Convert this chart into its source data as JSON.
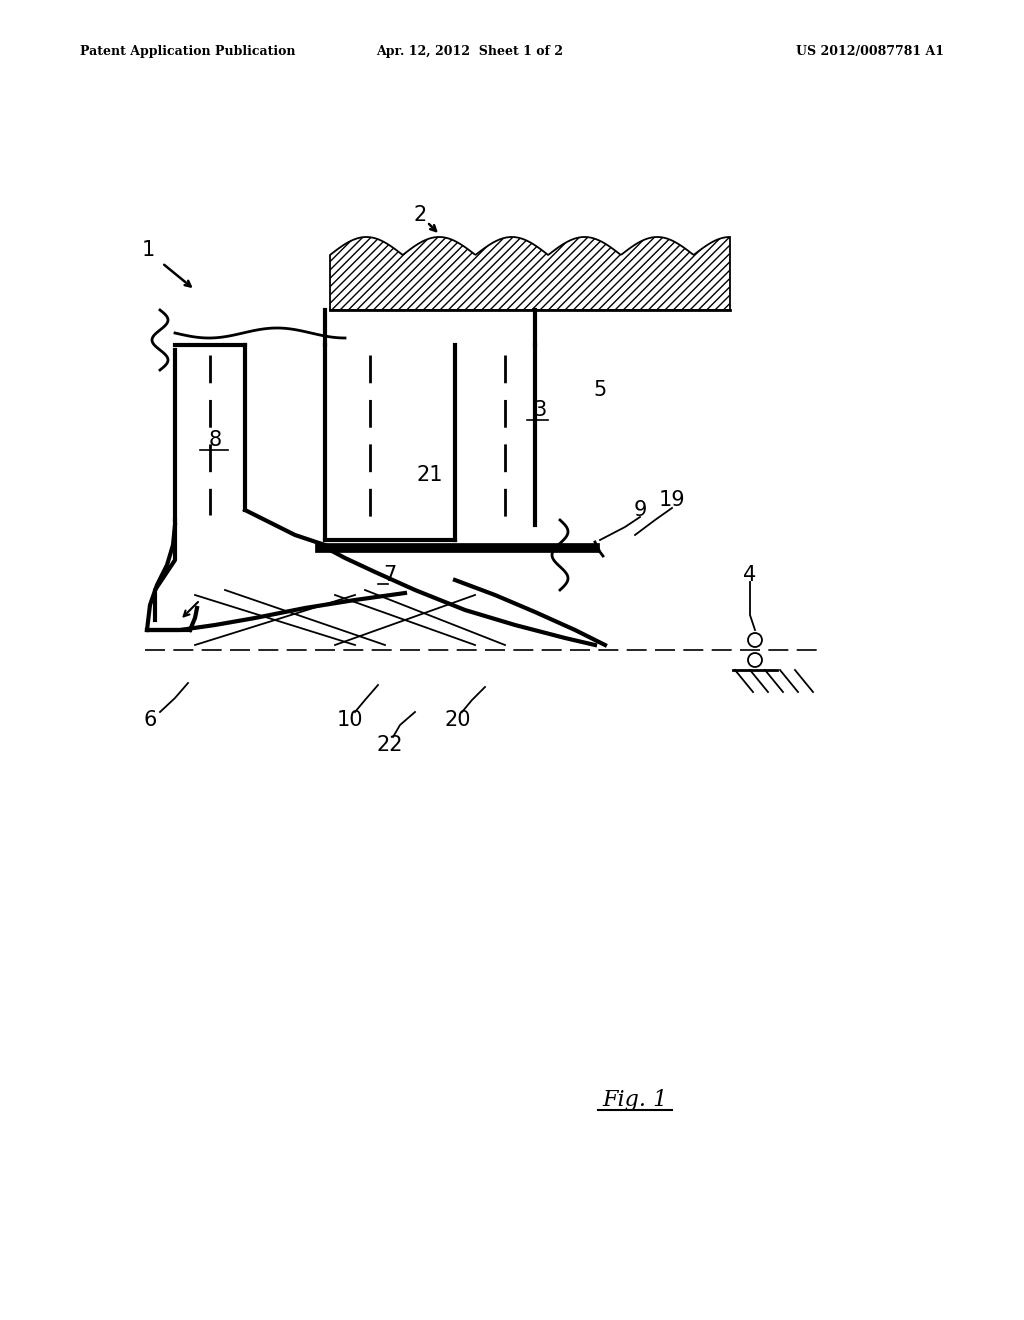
{
  "bg_color": "#ffffff",
  "line_color": "#000000",
  "header_left": "Patent Application Publication",
  "header_mid": "Apr. 12, 2012  Sheet 1 of 2",
  "header_right": "US 2012/0087781 A1",
  "fig_label": "Fig. 1"
}
